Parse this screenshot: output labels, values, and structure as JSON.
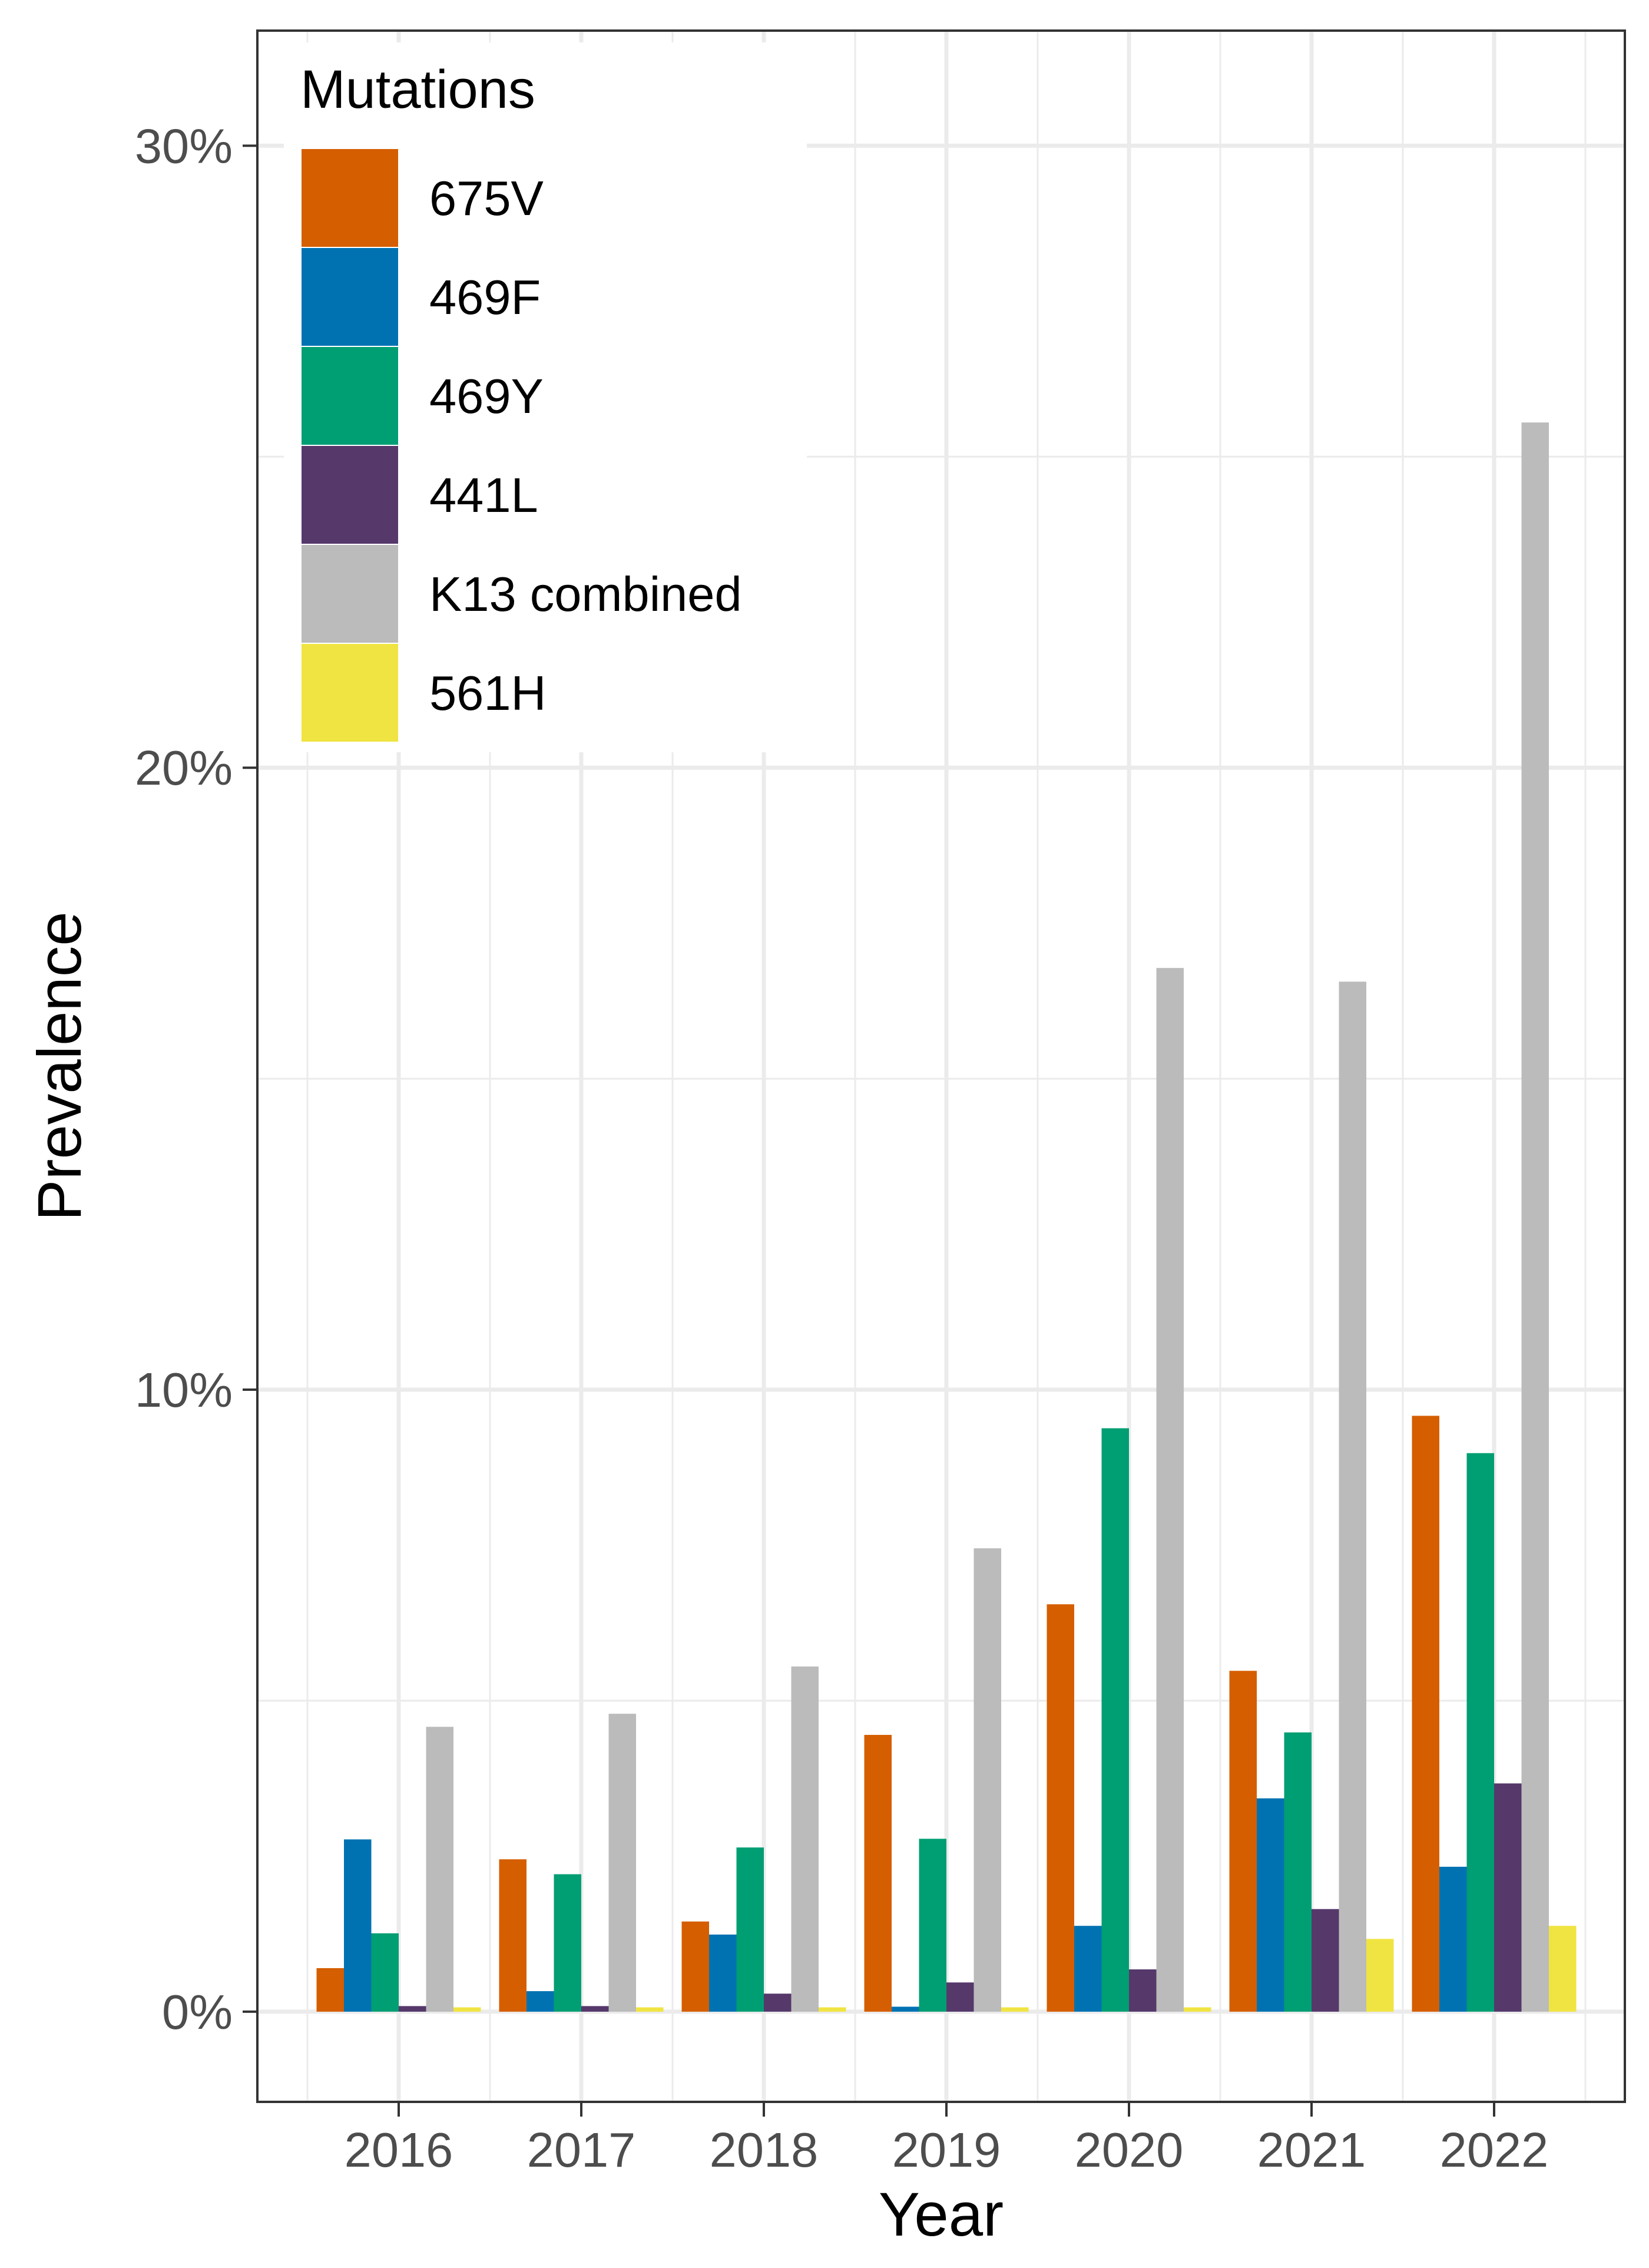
{
  "chart_data": {
    "type": "bar",
    "xlabel": "Year",
    "ylabel": "Prevalence",
    "ylim": [
      -0.0145,
      0.3185
    ],
    "y_ticks": [
      0,
      0.1,
      0.2,
      0.3
    ],
    "y_tick_labels": [
      "0%",
      "10%",
      "20%",
      "30%"
    ],
    "grid": true,
    "legend": {
      "title": "Mutations",
      "placement": "top-left"
    },
    "categories": [
      "2016",
      "2017",
      "2018",
      "2019",
      "2020",
      "2021",
      "2022"
    ],
    "series": [
      {
        "name": "675V",
        "color": "#D55E00",
        "values": [
          0.007,
          0.0245,
          0.0145,
          0.0445,
          0.0655,
          0.0548,
          0.0958
        ]
      },
      {
        "name": "469F",
        "color": "#0072B2",
        "values": [
          0.0277,
          0.0033,
          0.0124,
          0.0008,
          0.0138,
          0.0343,
          0.0233
        ]
      },
      {
        "name": "469Y",
        "color": "#009E73",
        "values": [
          0.0126,
          0.0221,
          0.0264,
          0.0278,
          0.0938,
          0.0449,
          0.0898
        ]
      },
      {
        "name": "441L",
        "color": "#56386B",
        "values": [
          0.0009,
          0.0009,
          0.0029,
          0.0047,
          0.0068,
          0.0165,
          0.0367
        ]
      },
      {
        "name": "K13 combined",
        "color": "#BBBBBB",
        "values": [
          0.0458,
          0.0479,
          0.0555,
          0.0745,
          0.1678,
          0.1656,
          0.2555
        ]
      },
      {
        "name": "561H",
        "color": "#F0E442",
        "values": [
          0.0007,
          0.0007,
          0.0007,
          0.0007,
          0.0007,
          0.0117,
          0.0138
        ]
      }
    ]
  }
}
